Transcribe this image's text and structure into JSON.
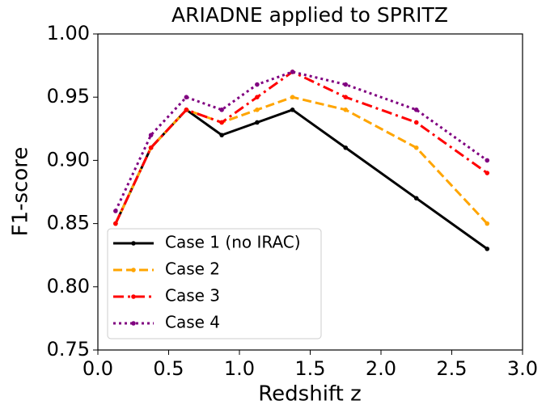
{
  "chart_data": {
    "type": "line",
    "title": "ARIADNE applied to SPRITZ",
    "xlabel": "Redshift z",
    "ylabel": "F1-score",
    "x": [
      0.125,
      0.375,
      0.625,
      0.875,
      1.125,
      1.375,
      1.75,
      2.25,
      2.75
    ],
    "series": [
      {
        "name": "Case 1 (no IRAC)",
        "color": "#000000",
        "dash": "solid",
        "values": [
          0.85,
          0.91,
          0.94,
          0.92,
          0.93,
          0.94,
          0.91,
          0.87,
          0.83
        ]
      },
      {
        "name": "Case 2",
        "color": "#ffa500",
        "dash": "dashed",
        "values": [
          0.85,
          0.91,
          0.94,
          0.93,
          0.94,
          0.95,
          0.94,
          0.91,
          0.85
        ]
      },
      {
        "name": "Case 3",
        "color": "#ff0000",
        "dash": "dashdot",
        "values": [
          0.85,
          0.91,
          0.94,
          0.93,
          0.95,
          0.97,
          0.95,
          0.93,
          0.89
        ]
      },
      {
        "name": "Case 4",
        "color": "#800080",
        "dash": "dotted",
        "values": [
          0.86,
          0.92,
          0.95,
          0.94,
          0.96,
          0.97,
          0.96,
          0.94,
          0.9
        ]
      }
    ],
    "xlim": [
      0,
      3
    ],
    "xticks": [
      {
        "value": 0,
        "label": "0.0"
      },
      0.5,
      {
        "value": 1,
        "label": "1.0"
      },
      1.5,
      {
        "value": 2,
        "label": "2.0"
      },
      2.5,
      {
        "value": 3,
        "label": "3.0"
      }
    ],
    "ylim": [
      0.75,
      1.0
    ],
    "yticks": [
      0.75,
      {
        "value": 0.8,
        "label": "0.80"
      },
      0.85,
      {
        "value": 0.9,
        "label": "0.90"
      },
      0.95,
      {
        "value": 1.0,
        "label": "1.00"
      }
    ],
    "grid": false,
    "legend": "lower left"
  }
}
